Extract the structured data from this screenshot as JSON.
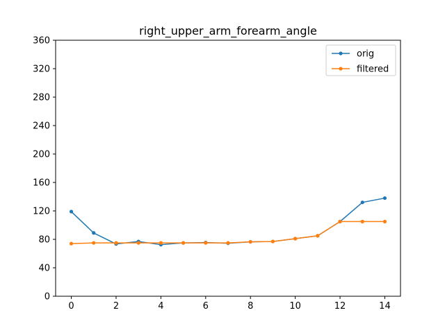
{
  "chart_data": {
    "type": "line",
    "title": "right_upper_arm_forearm_angle",
    "xlabel": "",
    "ylabel": "",
    "x": [
      0,
      1,
      2,
      3,
      4,
      5,
      6,
      7,
      8,
      9,
      10,
      11,
      12,
      13,
      14
    ],
    "xlim": [
      -0.7,
      14.7
    ],
    "ylim": [
      0,
      360
    ],
    "xticks": [
      0,
      2,
      4,
      6,
      8,
      10,
      12,
      14
    ],
    "yticks": [
      0,
      40,
      80,
      120,
      160,
      200,
      240,
      280,
      320,
      360
    ],
    "grid": false,
    "legend": {
      "position": "top-right"
    },
    "series": [
      {
        "name": "orig",
        "color": "#1f77b4",
        "values": [
          119,
          89,
          73.5,
          77,
          72.5,
          75,
          75.5,
          74.5,
          76.5,
          77,
          81,
          85,
          105,
          132,
          138
        ]
      },
      {
        "name": "filtered",
        "color": "#ff7f0e",
        "values": [
          74,
          75,
          75,
          75,
          75,
          75,
          75,
          75,
          76.5,
          77,
          81,
          85,
          105,
          105,
          105
        ]
      }
    ]
  }
}
